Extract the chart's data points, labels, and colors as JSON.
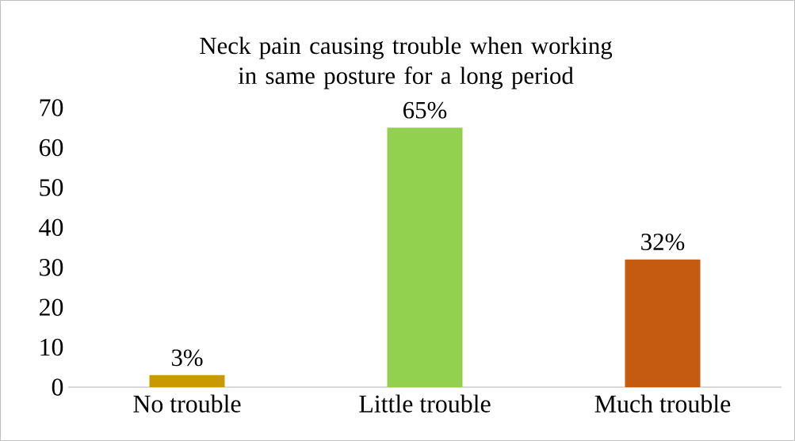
{
  "chart_data": {
    "type": "bar",
    "title": "Neck pain causing trouble when working in same posture for a long period",
    "categories": [
      "No trouble",
      "Little trouble",
      "Much trouble"
    ],
    "values": [
      3,
      65,
      32
    ],
    "colors": [
      "#c89a00",
      "#92d050",
      "#c55a11"
    ],
    "value_labels": [
      "3%",
      "65%",
      "32%"
    ],
    "ylim": [
      0,
      70
    ],
    "yticks": [
      0,
      10,
      20,
      30,
      40,
      50,
      60,
      70
    ],
    "grid": false
  }
}
